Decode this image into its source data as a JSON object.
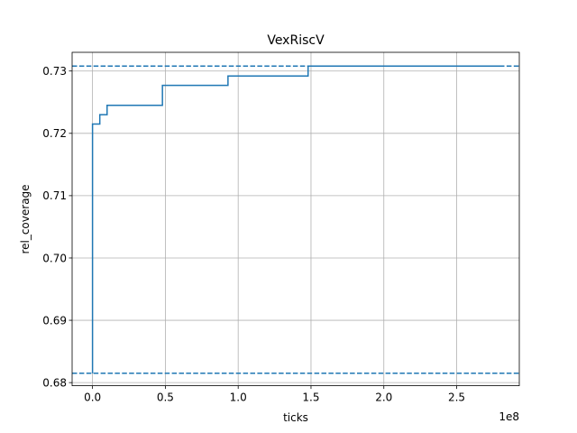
{
  "chart_data": {
    "type": "line",
    "title": "VexRiscV",
    "xlabel": "ticks",
    "ylabel": "rel_coverage",
    "x_offset_label": "1e8",
    "xlim": [
      -0.14,
      2.93
    ],
    "ylim": [
      0.6795,
      0.733
    ],
    "x_ticks": [
      0.0,
      0.5,
      1.0,
      1.5,
      2.0,
      2.5
    ],
    "x_tick_labels": [
      "0.0",
      "0.5",
      "1.0",
      "1.5",
      "2.0",
      "2.5"
    ],
    "y_ticks": [
      0.68,
      0.69,
      0.7,
      0.71,
      0.72,
      0.73
    ],
    "y_tick_labels": [
      "0.68",
      "0.69",
      "0.70",
      "0.71",
      "0.72",
      "0.73"
    ],
    "grid": true,
    "series": [
      {
        "style": "step-post",
        "color": "#1f77b4",
        "x": [
          0.0,
          0.0,
          0.05,
          0.1,
          0.48,
          0.93,
          1.48,
          2.8
        ],
        "y": [
          0.6815,
          0.7215,
          0.723,
          0.7245,
          0.7277,
          0.7292,
          0.7308,
          0.7308
        ]
      }
    ],
    "reference_lines": [
      {
        "y": 0.6815,
        "style": "dashed",
        "color": "#1f77b4"
      },
      {
        "y": 0.7308,
        "style": "dashed",
        "color": "#1f77b4"
      }
    ]
  }
}
